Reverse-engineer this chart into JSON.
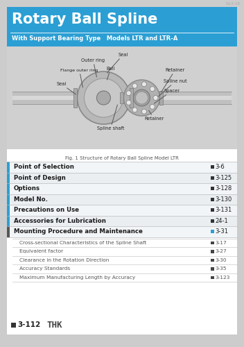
{
  "page_bg": "#cccccc",
  "header_bg": "#2b9fd4",
  "header_title": "Rotary Ball Spline",
  "header_subtitle": "With Support Bearing Type   Models LTR and LTR-A",
  "fig_caption": "Fig. 1 Structure of Rotary Ball Spline Model LTR",
  "top_label": "S13-2E",
  "main_entries": [
    {
      "label": "Point of Selection",
      "page": "3-6",
      "bold": true,
      "page_color": "#333333"
    },
    {
      "label": "Point of Design",
      "page": "3-125",
      "bold": true,
      "page_color": "#333333"
    },
    {
      "label": "Options",
      "page": "3-128",
      "bold": true,
      "page_color": "#333333"
    },
    {
      "label": "Model No.",
      "page": "3-130",
      "bold": true,
      "page_color": "#333333"
    },
    {
      "label": "Precautions on Use",
      "page": "3-131",
      "bold": true,
      "page_color": "#333333"
    },
    {
      "label": "Accessories for Lubrication",
      "page": "24-1",
      "bold": true,
      "page_color": "#333333"
    },
    {
      "label": "Mounting Procedure and Maintenance",
      "page": "3-31",
      "bold": true,
      "page_color": "#2b9fd4"
    }
  ],
  "sub_entries": [
    {
      "label": "Cross-sectional Characteristics of the Spline Shaft",
      "page": "3-17"
    },
    {
      "label": "Equivalent factor",
      "page": "3-27"
    },
    {
      "label": "Clearance in the Rotation Direction",
      "page": "3-30"
    },
    {
      "label": "Accuracy Standards",
      "page": "3-35"
    },
    {
      "label": "Maximum Manufacturing Length by Accuracy",
      "page": "3-123"
    }
  ],
  "footer_number": "3-112",
  "footer_logo": "THK",
  "sidebar_color": "#2b9fd4",
  "dark_sidebar_color": "#555555",
  "line_color": "#bbbbbb",
  "text_dark": "#1a1a1a",
  "text_gray": "#555555",
  "white": "#ffffff",
  "content_bg": "#ffffff",
  "diag_bg": "#d0d0d0"
}
